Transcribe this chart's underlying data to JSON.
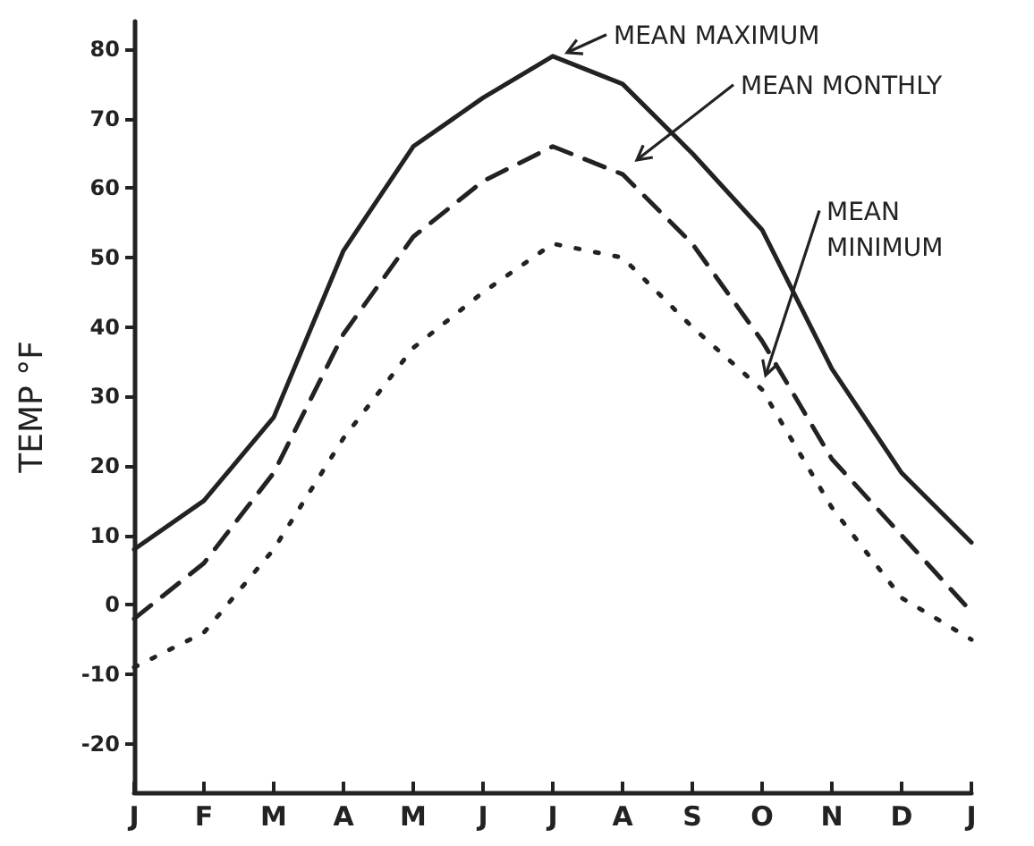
{
  "chart_data": {
    "type": "line",
    "ylabel": "TEMP °F",
    "categories": [
      "J",
      "F",
      "M",
      "A",
      "M",
      "J",
      "J",
      "A",
      "S",
      "O",
      "N",
      "D",
      "J"
    ],
    "series": [
      {
        "name": "MEAN MAXIMUM",
        "color": "#222222",
        "line_style": "solid",
        "values": [
          8,
          15,
          27,
          51,
          66,
          73,
          79,
          75,
          65,
          54,
          34,
          19,
          9
        ]
      },
      {
        "name": "MEAN MONTHLY",
        "color": "#222222",
        "line_style": "dashed",
        "values": [
          -2,
          6,
          19,
          39,
          53,
          61,
          66,
          62,
          52,
          38,
          21,
          10,
          -1
        ]
      },
      {
        "name": "MEAN MINIMUM",
        "color": "#222222",
        "line_style": "dotted",
        "values": [
          -9,
          -4,
          8,
          24,
          37,
          45,
          52,
          50,
          40,
          31,
          14,
          1,
          -5
        ]
      }
    ],
    "ylim": [
      -27,
      84
    ],
    "yticks": [
      -20,
      -10,
      0,
      10,
      20,
      30,
      40,
      50,
      60,
      70,
      80
    ],
    "grid": false,
    "marker": "none"
  }
}
